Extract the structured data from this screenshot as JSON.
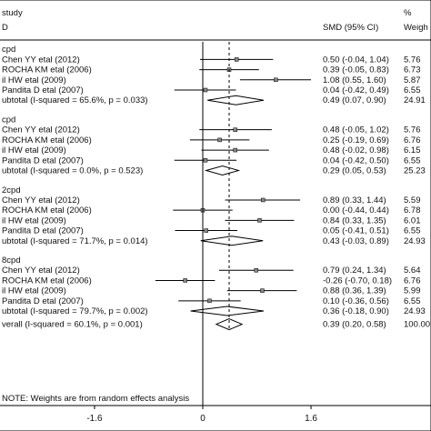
{
  "chart_data": {
    "type": "forest",
    "header": {
      "study_label": "study",
      "id_label": "D",
      "effect_label": "SMD (95% CI)",
      "weight_label_line1": "%",
      "weight_label_line2": "Weigh"
    },
    "x_ticks": [
      -1.6,
      0,
      1.6
    ],
    "x_tick_labels": [
      "-1.6",
      "0",
      "1.6"
    ],
    "xlim": [
      -3.0,
      3.2
    ],
    "overall_line": 0.39,
    "note": "NOTE: Weights are from random effects analysis",
    "groups": [
      {
        "name": "cpd",
        "studies": [
          {
            "label": "Chen YY etal (2012)",
            "es": 0.5,
            "lo": -0.04,
            "hi": 1.04,
            "text": "0.50 (-0.04, 1.04)",
            "weight": "5.76"
          },
          {
            "label": "ROCHA KM etal (2006)",
            "es": 0.39,
            "lo": -0.05,
            "hi": 0.83,
            "text": "0.39 (-0.05, 0.83)",
            "weight": "6.73"
          },
          {
            "label": "il HW etal (2009)",
            "es": 1.08,
            "lo": 0.55,
            "hi": 1.6,
            "text": "1.08 (0.55, 1.60)",
            "weight": "5.87"
          },
          {
            "label": "Pandita D etal (2007)",
            "es": 0.04,
            "lo": -0.42,
            "hi": 0.49,
            "text": "0.04 (-0.42, 0.49)",
            "weight": "6.55"
          }
        ],
        "subtotal": {
          "label": "ubtotal  (I-squared = 65.6%, p = 0.033)",
          "es": 0.49,
          "lo": 0.07,
          "hi": 0.9,
          "text": "0.49 (0.07, 0.90)",
          "weight": "24.91"
        }
      },
      {
        "name": "cpd",
        "studies": [
          {
            "label": "Chen YY etal (2012)",
            "es": 0.48,
            "lo": -0.05,
            "hi": 1.02,
            "text": "0.48 (-0.05, 1.02)",
            "weight": "5.76"
          },
          {
            "label": "ROCHA KM etal (2006)",
            "es": 0.25,
            "lo": -0.19,
            "hi": 0.69,
            "text": "0.25 (-0.19, 0.69)",
            "weight": "6.76"
          },
          {
            "label": "il HW etal (2009)",
            "es": 0.48,
            "lo": -0.02,
            "hi": 0.98,
            "text": "0.48 (-0.02, 0.98)",
            "weight": "6.15"
          },
          {
            "label": "Pandita D etal (2007)",
            "es": 0.04,
            "lo": -0.42,
            "hi": 0.5,
            "text": "0.04 (-0.42, 0.50)",
            "weight": "6.55"
          }
        ],
        "subtotal": {
          "label": "ubtotal  (I-squared = 0.0%, p = 0.523)",
          "es": 0.29,
          "lo": 0.05,
          "hi": 0.53,
          "text": "0.29 (0.05, 0.53)",
          "weight": "25.23"
        }
      },
      {
        "name": "2cpd",
        "studies": [
          {
            "label": "Chen YY etal (2012)",
            "es": 0.89,
            "lo": 0.33,
            "hi": 1.44,
            "text": "0.89 (0.33, 1.44)",
            "weight": "5.59"
          },
          {
            "label": "ROCHA KM etal (2006)",
            "es": 0.0,
            "lo": -0.44,
            "hi": 0.44,
            "text": "0.00 (-0.44, 0.44)",
            "weight": "6.78"
          },
          {
            "label": "il HW etal (2009)",
            "es": 0.84,
            "lo": 0.33,
            "hi": 1.35,
            "text": "0.84 (0.33, 1.35)",
            "weight": "6.01"
          },
          {
            "label": "Pandita D etal (2007)",
            "es": 0.05,
            "lo": -0.41,
            "hi": 0.51,
            "text": "0.05 (-0.41, 0.51)",
            "weight": "6.55"
          }
        ],
        "subtotal": {
          "label": "ubtotal  (I-squared = 71.7%, p = 0.014)",
          "es": 0.43,
          "lo": -0.03,
          "hi": 0.89,
          "text": "0.43 (-0.03, 0.89)",
          "weight": "24.93"
        }
      },
      {
        "name": "8cpd",
        "studies": [
          {
            "label": "Chen YY etal (2012)",
            "es": 0.79,
            "lo": 0.24,
            "hi": 1.34,
            "text": "0.79 (0.24, 1.34)",
            "weight": "5.64"
          },
          {
            "label": "ROCHA KM etal (2006)",
            "es": -0.26,
            "lo": -0.7,
            "hi": 0.18,
            "text": "-0.26 (-0.70, 0.18)",
            "weight": "6.76"
          },
          {
            "label": "il HW etal (2009)",
            "es": 0.88,
            "lo": 0.36,
            "hi": 1.39,
            "text": "0.88 (0.36, 1.39)",
            "weight": "5.99"
          },
          {
            "label": "Pandita D etal (2007)",
            "es": 0.1,
            "lo": -0.36,
            "hi": 0.56,
            "text": "0.10 (-0.36, 0.56)",
            "weight": "6.55"
          }
        ],
        "subtotal": {
          "label": "ubtotal  (I-squared = 79.7%, p = 0.002)",
          "es": 0.36,
          "lo": -0.18,
          "hi": 0.9,
          "text": "0.36 (-0.18, 0.90)",
          "weight": "24.93"
        }
      }
    ],
    "overall": {
      "label": "verall  (I-squared = 60.1%, p = 0.001)",
      "es": 0.39,
      "lo": 0.2,
      "hi": 0.58,
      "text": "0.39 (0.20, 0.58)",
      "weight": "100.00"
    }
  }
}
